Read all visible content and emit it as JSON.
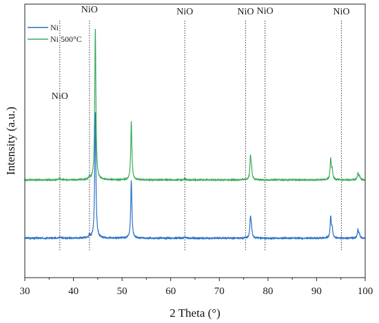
{
  "chart_data": {
    "type": "line",
    "xlabel": "2 Theta (°)",
    "ylabel": "Intensity (a.u.)",
    "xlim": [
      30,
      100
    ],
    "x_ticks": [
      30,
      40,
      50,
      60,
      70,
      80,
      90,
      100
    ],
    "y_ticks_shown": false,
    "grid": false,
    "legend_position": "top-left",
    "series": [
      {
        "name": "Ni",
        "color": "#2a6fc9",
        "baseline": 0,
        "peaks": [
          {
            "x": 37.2,
            "h": 0.15
          },
          {
            "x": 43.3,
            "h": 0.3
          },
          {
            "x": 44.5,
            "h": 13.5
          },
          {
            "x": 51.9,
            "h": 6.2
          },
          {
            "x": 62.9,
            "h": 0.12
          },
          {
            "x": 76.4,
            "h": 2.1
          },
          {
            "x": 76.6,
            "h": 0.9
          },
          {
            "x": 92.9,
            "h": 2.2
          },
          {
            "x": 93.2,
            "h": 1.0
          },
          {
            "x": 98.5,
            "h": 0.9
          },
          {
            "x": 98.8,
            "h": 0.4
          }
        ]
      },
      {
        "name": "Ni 500°C",
        "color": "#3aaa5c",
        "baseline": 6.2,
        "peaks": [
          {
            "x": 37.2,
            "h": 0.2
          },
          {
            "x": 43.3,
            "h": 0.3
          },
          {
            "x": 44.5,
            "h": 16.2
          },
          {
            "x": 51.9,
            "h": 6.2
          },
          {
            "x": 62.9,
            "h": 0.12
          },
          {
            "x": 76.4,
            "h": 2.3
          },
          {
            "x": 76.6,
            "h": 1.0
          },
          {
            "x": 92.9,
            "h": 2.2
          },
          {
            "x": 93.2,
            "h": 1.0
          },
          {
            "x": 98.5,
            "h": 0.7
          },
          {
            "x": 98.8,
            "h": 0.4
          }
        ]
      }
    ],
    "reference_lines": [
      {
        "x": 37.2,
        "label": "NiO"
      },
      {
        "x": 43.3,
        "label": "NiO"
      },
      {
        "x": 62.9,
        "label": "NiO"
      },
      {
        "x": 75.4,
        "label": "NiO"
      },
      {
        "x": 79.4,
        "label": "NiO"
      },
      {
        "x": 95.1,
        "label": "NiO"
      }
    ]
  }
}
